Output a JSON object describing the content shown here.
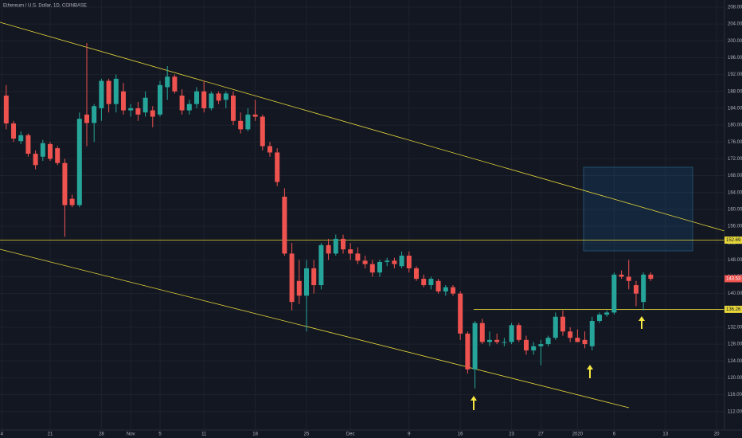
{
  "chart_data": {
    "type": "candlestick",
    "title": "Ethereum / U.S. Dollar, 1D, COINBASE",
    "x": [
      -6,
      -5,
      -4,
      -3,
      -2,
      -1,
      0,
      1,
      2,
      3,
      4,
      5,
      6,
      7,
      8,
      9,
      10,
      11,
      12,
      13,
      14,
      15,
      16,
      17,
      18,
      19,
      20,
      21,
      22,
      23,
      24,
      25,
      26,
      27,
      28,
      29,
      30,
      31,
      32,
      33,
      34,
      35,
      36,
      37,
      38,
      39,
      40,
      41,
      42,
      43,
      44,
      45,
      46,
      47,
      48,
      49,
      50,
      51,
      52,
      53,
      54,
      55,
      56,
      57,
      58,
      59,
      60,
      61,
      62,
      63,
      64,
      65,
      66,
      67,
      68,
      69,
      70,
      71,
      72,
      73,
      74,
      75,
      76,
      77,
      78,
      79,
      80,
      81,
      82
    ],
    "open": [
      187,
      180.4,
      176.2,
      177.6,
      173.2,
      172.5,
      175.5,
      174.5,
      171,
      162.5,
      161,
      182.5,
      180.5,
      184,
      190.5,
      185,
      188,
      183.5,
      184,
      183,
      183.5,
      182.5,
      189,
      191.5,
      187,
      183.5,
      185,
      188,
      184,
      187.5,
      186,
      187,
      181,
      179,
      182.5,
      182,
      175,
      173.5,
      163,
      149.5,
      143,
      139.5,
      146,
      142,
      151.5,
      149.5,
      153,
      150.5,
      149.5,
      147.8,
      147,
      145,
      147.5,
      147.8,
      146.5,
      149,
      146,
      143.5,
      142,
      143,
      140.5,
      141.5,
      140,
      130.5,
      122,
      133,
      128.5,
      129,
      128.5,
      128.5,
      132.5,
      129,
      126.5,
      127.5,
      128,
      129.5,
      134.5,
      131,
      129.5,
      129,
      127.5,
      133.5,
      135,
      135.5,
      144.5,
      144,
      142,
      138,
      144.5
    ],
    "high": [
      189.5,
      181,
      178.5,
      178,
      174,
      176.5,
      176,
      175,
      172,
      163.5,
      183,
      199.5,
      185,
      191,
      191,
      192,
      190,
      185,
      185.5,
      188,
      184.5,
      190.5,
      194,
      192,
      188.5,
      186,
      189,
      190.5,
      188,
      188,
      188,
      188,
      183,
      184,
      186,
      182.5,
      176,
      174.5,
      165,
      152,
      148,
      148,
      148,
      152,
      153,
      154,
      154,
      152,
      151,
      149,
      148,
      148,
      148.5,
      148.5,
      150,
      150,
      146.5,
      144.5,
      144,
      143.5,
      142,
      142,
      140.5,
      131,
      133.5,
      134,
      131,
      130.5,
      129.5,
      133,
      133,
      130,
      128.5,
      129,
      130,
      135.5,
      136,
      132,
      131.5,
      131,
      134.5,
      135.5,
      136,
      145,
      145.5,
      148,
      143,
      145,
      145
    ],
    "low": [
      179,
      176,
      175.5,
      172.5,
      169.5,
      171.5,
      171.5,
      170.5,
      153.5,
      160.5,
      160.5,
      175,
      176,
      181,
      183,
      183,
      182.5,
      182,
      181,
      182,
      179.5,
      182,
      186,
      187.5,
      182.5,
      182.5,
      184,
      183,
      183.5,
      185,
      184,
      180,
      178,
      178.5,
      181,
      174,
      172.5,
      165.5,
      149,
      136,
      137.5,
      131,
      140,
      141,
      148,
      149,
      149.5,
      148,
      147,
      146,
      144,
      144,
      146.5,
      146,
      146,
      145,
      143,
      141.5,
      141,
      140,
      139.5,
      139.5,
      129,
      121,
      117.5,
      128,
      127.5,
      128,
      127.5,
      128,
      128.5,
      125.5,
      125.5,
      123,
      127.5,
      129,
      130,
      128.5,
      128.5,
      127,
      126.5,
      133,
      134.5,
      135,
      143.5,
      141,
      137,
      136,
      143
    ],
    "close": [
      180.4,
      176.8,
      177.6,
      173.2,
      170.5,
      175.7,
      172,
      171,
      161,
      161,
      181.5,
      180.5,
      184.5,
      190.5,
      185,
      191,
      183.5,
      184,
      182.5,
      186.5,
      182,
      189.5,
      191.5,
      188,
      183.5,
      185,
      188,
      184,
      187.5,
      185.8,
      187.5,
      181,
      179,
      182.5,
      182,
      175,
      173.5,
      166.5,
      149.5,
      138,
      139.5,
      146,
      142,
      151.5,
      149.5,
      153,
      150.5,
      149.5,
      147.8,
      147,
      145,
      147.5,
      147.8,
      147,
      149,
      146,
      143.5,
      142,
      143.5,
      140.5,
      141.5,
      140,
      130.5,
      122,
      133,
      128.5,
      129,
      128.5,
      128.5,
      132.5,
      129,
      126.5,
      127.5,
      128,
      129.5,
      134.5,
      131,
      129.5,
      128.5,
      128,
      133.5,
      135,
      135.5,
      144.5,
      144,
      143,
      140,
      144.5,
      143.5
    ],
    "up_color": "#26a69a",
    "down_color": "#ef5350",
    "levels": [
      152.69,
      136.26
    ],
    "level_color": "#e6d63a",
    "last_price": 143.53,
    "xlim": [
      -6.85,
      92.07
    ],
    "ylim": [
      107.6,
      209.7
    ],
    "xticks": [
      {
        "value": -6.6,
        "label": "4"
      },
      {
        "value": 0,
        "label": "21"
      },
      {
        "value": 7,
        "label": "28"
      },
      {
        "value": 11,
        "label": "Nov"
      },
      {
        "value": 15,
        "label": "5"
      },
      {
        "value": 21,
        "label": "11"
      },
      {
        "value": 28,
        "label": "18"
      },
      {
        "value": 35,
        "label": "25"
      },
      {
        "value": 41,
        "label": "Dec"
      },
      {
        "value": 49,
        "label": "9"
      },
      {
        "value": 56,
        "label": "16"
      },
      {
        "value": 63,
        "label": "23"
      },
      {
        "value": 67,
        "label": "27"
      },
      {
        "value": 72,
        "label": "2020"
      },
      {
        "value": 77,
        "label": "6"
      },
      {
        "value": 84,
        "label": "13"
      },
      {
        "value": 91,
        "label": "20"
      }
    ],
    "yticks": [
      {
        "value": 112,
        "label": "112.00"
      },
      {
        "value": 116,
        "label": "116.00"
      },
      {
        "value": 120,
        "label": "120.00"
      },
      {
        "value": 124,
        "label": "124.00"
      },
      {
        "value": 128,
        "label": "128.00"
      },
      {
        "value": 132,
        "label": "132.00"
      },
      {
        "value": 136,
        "label": "136.00"
      },
      {
        "value": 140,
        "label": "140.00"
      },
      {
        "value": 144,
        "label": "144.00"
      },
      {
        "value": 148,
        "label": "148.00"
      },
      {
        "value": 152,
        "label": "152.00"
      },
      {
        "value": 156,
        "label": "156.00"
      },
      {
        "value": 160,
        "label": "160.00"
      },
      {
        "value": 164,
        "label": "164.00"
      },
      {
        "value": 168,
        "label": "168.00"
      },
      {
        "value": 172,
        "label": "172.00"
      },
      {
        "value": 176,
        "label": "176.00"
      },
      {
        "value": 180,
        "label": "180.00"
      },
      {
        "value": 184,
        "label": "184.00"
      },
      {
        "value": 188,
        "label": "188.00"
      },
      {
        "value": 192,
        "label": "192.00"
      },
      {
        "value": 196,
        "label": "196.00"
      },
      {
        "value": 200,
        "label": "200.00"
      },
      {
        "value": 204,
        "label": "204.00"
      },
      {
        "value": 208,
        "label": "208.00"
      }
    ],
    "grid": true
  }
}
